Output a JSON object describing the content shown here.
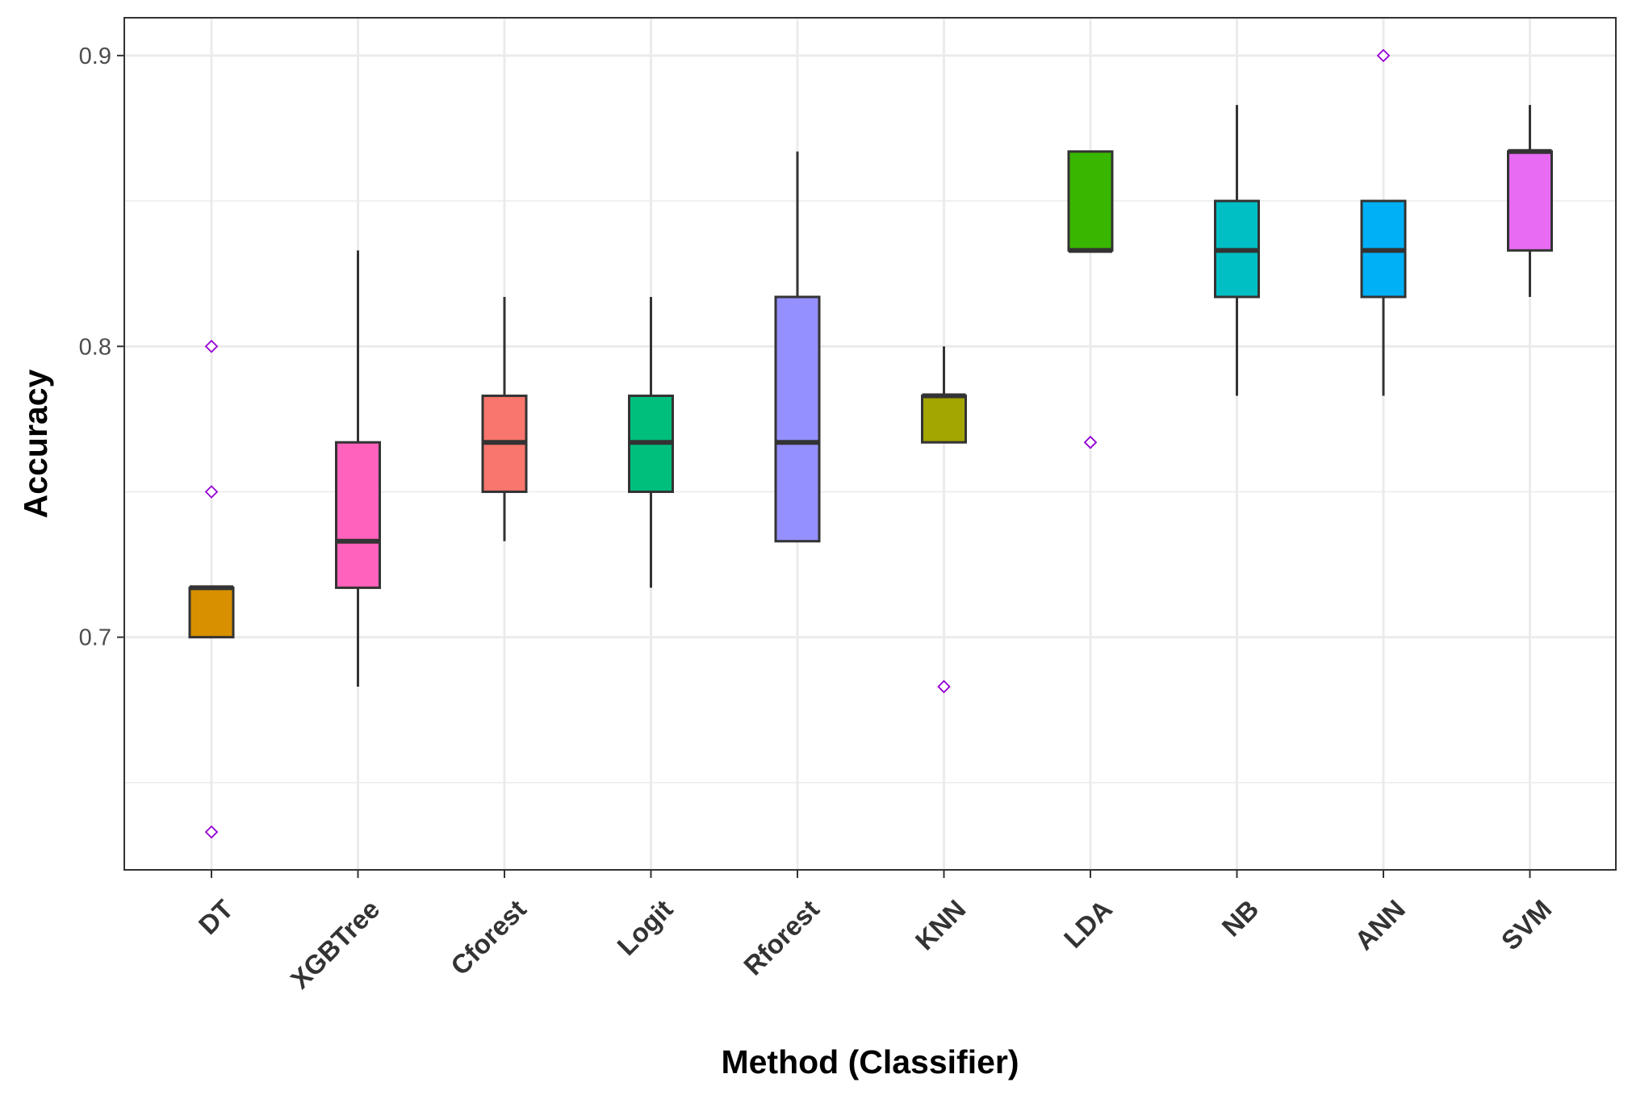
{
  "chart_data": {
    "type": "box",
    "title": "",
    "xlabel": "Method (Classifier)",
    "ylabel": "Accuracy",
    "ylim": [
      0.62,
      0.913
    ],
    "yticks": [
      0.7,
      0.8,
      0.9
    ],
    "ytick_labels": [
      "0.7",
      "0.8",
      "0.9"
    ],
    "grid": true,
    "legend": "none",
    "categories": [
      "DT",
      "XGBTree",
      "Cforest",
      "Logit",
      "Rforest",
      "KNN",
      "LDA",
      "NB",
      "ANN",
      "SVM"
    ],
    "series": [
      {
        "category": "DT",
        "color": "#d89000",
        "lower_whisker": 0.7,
        "q1": 0.7,
        "median": 0.717,
        "q3": 0.717,
        "upper_whisker": 0.717,
        "outliers": [
          0.8,
          0.75,
          0.633
        ]
      },
      {
        "category": "XGBTree",
        "color": "#ff62bc",
        "lower_whisker": 0.683,
        "q1": 0.717,
        "median": 0.733,
        "q3": 0.767,
        "upper_whisker": 0.833,
        "outliers": []
      },
      {
        "category": "Cforest",
        "color": "#f8766d",
        "lower_whisker": 0.733,
        "q1": 0.75,
        "median": 0.767,
        "q3": 0.783,
        "upper_whisker": 0.817,
        "outliers": []
      },
      {
        "category": "Logit",
        "color": "#00bf7d",
        "lower_whisker": 0.717,
        "q1": 0.75,
        "median": 0.767,
        "q3": 0.783,
        "upper_whisker": 0.817,
        "outliers": []
      },
      {
        "category": "Rforest",
        "color": "#9590ff",
        "lower_whisker": 0.733,
        "q1": 0.733,
        "median": 0.767,
        "q3": 0.817,
        "upper_whisker": 0.867,
        "outliers": []
      },
      {
        "category": "KNN",
        "color": "#a3a500",
        "lower_whisker": 0.767,
        "q1": 0.767,
        "median": 0.783,
        "q3": 0.783,
        "upper_whisker": 0.8,
        "outliers": [
          0.683
        ]
      },
      {
        "category": "LDA",
        "color": "#39b600",
        "lower_whisker": 0.833,
        "q1": 0.833,
        "median": 0.833,
        "q3": 0.867,
        "upper_whisker": 0.867,
        "outliers": [
          0.767
        ]
      },
      {
        "category": "NB",
        "color": "#00bfc4",
        "lower_whisker": 0.783,
        "q1": 0.817,
        "median": 0.833,
        "q3": 0.85,
        "upper_whisker": 0.883,
        "outliers": []
      },
      {
        "category": "ANN",
        "color": "#00b0f6",
        "lower_whisker": 0.783,
        "q1": 0.817,
        "median": 0.833,
        "q3": 0.85,
        "upper_whisker": 0.85,
        "outliers": [
          0.9
        ]
      },
      {
        "category": "SVM",
        "color": "#e76bf3",
        "lower_whisker": 0.817,
        "q1": 0.833,
        "median": 0.867,
        "q3": 0.867,
        "upper_whisker": 0.883,
        "outliers": []
      }
    ],
    "outlier_color": "#9400d3",
    "box_outline_color": "#333333",
    "grid_color": "#ebebeb",
    "panel_border_color": "#333333"
  }
}
